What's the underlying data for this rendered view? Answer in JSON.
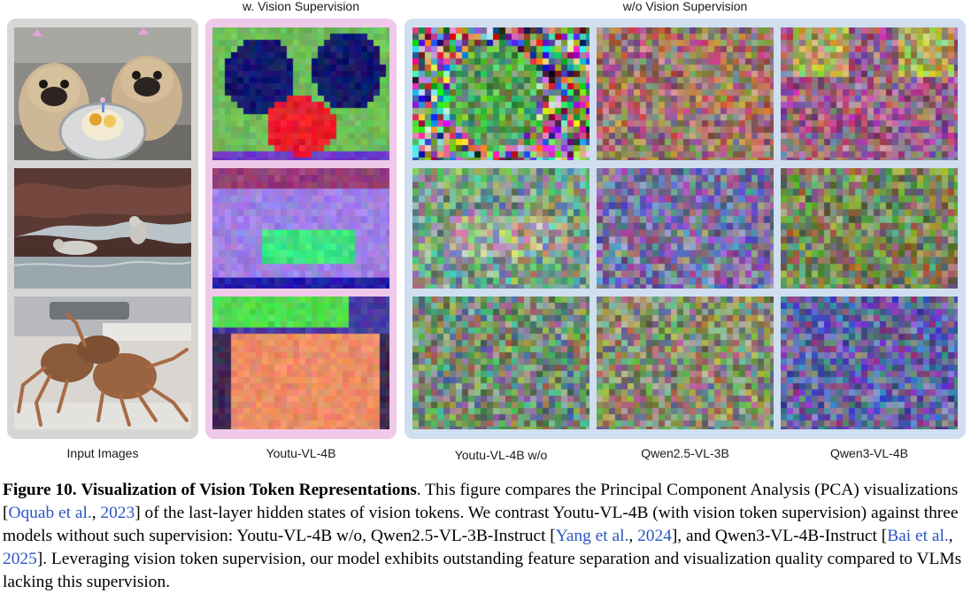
{
  "headers": {
    "with_supervision": "w. Vision Supervision",
    "without_supervision": "w/o Vision Supervision"
  },
  "column_labels": {
    "input": "Input Images",
    "youtu_with": "Youtu-VL-4B",
    "youtu_without": "Youtu-VL-4B w/o",
    "qwen25": "Qwen2.5-VL-3B",
    "qwen3": "Qwen3-VL-4B"
  },
  "input_images": [
    "pug-dogs-with-cake",
    "seals-on-rocks",
    "king-crabs"
  ],
  "colors": {
    "input_panel": "#d6d6d6",
    "with_panel": "#f0c9ea",
    "without_panel": "#cfdff0",
    "citation": "#2a55c4"
  },
  "caption": {
    "fig_label": "Figure 10.",
    "title": "Visualization of Vision Token Representations",
    "t1": ". This figure compares the Principal Component Analysis (PCA) visualizations [",
    "c1a": "Oquab et al.",
    "c1b": "2023",
    "t2": "] of the last-layer hidden states of vision tokens.  We contrast Youtu-VL-4B (with vision token supervision) against three models without such supervision: Youtu-VL-4B w/o, Qwen2.5-VL-3B-Instruct [",
    "c2a": "Yang et al.",
    "c2b": "2024",
    "t3": "], and Qwen3-VL-4B-Instruct [",
    "c3a": "Bai et al.",
    "c3b": "2025",
    "t4": "]. Leveraging vision token supervision, our model exhibits outstanding feature separation and visualization quality compared to VLMs lacking this supervision."
  }
}
